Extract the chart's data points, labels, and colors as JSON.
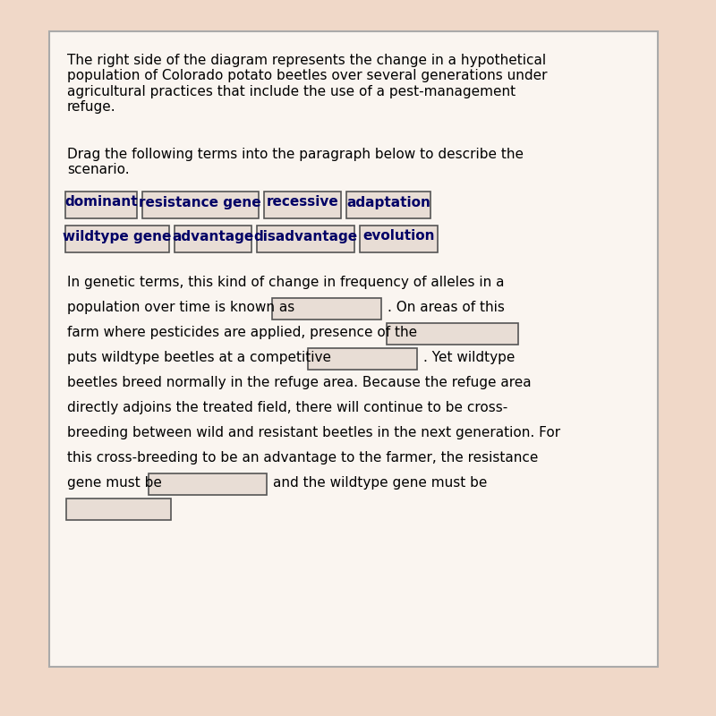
{
  "bg_color": "#f0d8c8",
  "main_bg": "#f5e8dc",
  "panel_bg": "#f5e8dc",
  "text_color": "#000000",
  "box_bg": "#e8d8cc",
  "box_border": "#888888",
  "title_text": "The right side of the diagram represents the change in a hypothetical\npopulation of Colorado potato beetles over several generations under\nagricultural practices that include the use of a pest-management\nrefuge.",
  "drag_instruction": "Drag the following terms into the paragraph below to describe the\nscenario.",
  "term_buttons_row1": [
    "dominant",
    "resistance gene",
    "recessive",
    "adaptation"
  ],
  "term_buttons_row2": [
    "wildtype gene",
    "advantage",
    "disadvantage",
    "evolution"
  ],
  "paragraph_lines": [
    "In genetic terms, this kind of change in frequency of alleles in a",
    "population over time is known as",
    ". On areas of this",
    "farm where pesticides are applied, presence of the",
    "puts wildtype beetles at a competitive",
    ". Yet wildtype",
    "beetles breed normally in the refuge area. Because the refuge area",
    "directly adjoins the treated field, there will continue to be cross-",
    "breeding between wild and resistant beetles in the next generation. For",
    "this cross-breeding to be an advantage to the farmer, the resistance",
    "gene must be",
    "and the wildtype gene must be"
  ],
  "font_size_title": 11,
  "font_size_body": 11,
  "font_size_buttons": 11
}
